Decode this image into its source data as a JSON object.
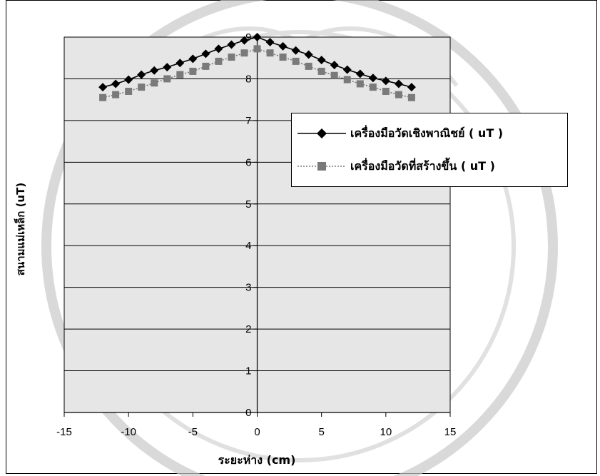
{
  "chart_data": {
    "type": "scatter",
    "title": "",
    "xlabel": "ระยะห่าง (cm)",
    "ylabel": "สนามแม่เหล็ก (uT)",
    "xlim": [
      -15,
      15
    ],
    "ylim": [
      0,
      9
    ],
    "xticks": [
      -15,
      -10,
      -5,
      0,
      5,
      10,
      15
    ],
    "yticks": [
      0,
      1,
      2,
      3,
      4,
      5,
      6,
      7,
      8,
      9
    ],
    "x_tick_labels": [
      "-15",
      "-10",
      "-5",
      "0",
      "5",
      "10",
      "15"
    ],
    "y_tick_labels": [
      "0",
      "1",
      "2",
      "3",
      "4",
      "5",
      "6",
      "7",
      "8",
      "9"
    ],
    "grid": true,
    "legend_position": "upper-right",
    "x": [
      -12,
      -11,
      -10,
      -9,
      -8,
      -7,
      -6,
      -5,
      -4,
      -3,
      -2,
      -1,
      0,
      1,
      2,
      3,
      4,
      5,
      6,
      7,
      8,
      9,
      10,
      11,
      12
    ],
    "series": [
      {
        "name": "เครื่องมือวัดเชิงพาณิชย์ ( uT )",
        "marker": "diamond",
        "line": "solid",
        "color": "#000000",
        "values": [
          7.8,
          7.88,
          7.98,
          8.1,
          8.2,
          8.28,
          8.38,
          8.48,
          8.6,
          8.72,
          8.82,
          8.92,
          9.0,
          8.88,
          8.78,
          8.68,
          8.58,
          8.45,
          8.33,
          8.22,
          8.12,
          8.02,
          7.95,
          7.88,
          7.8
        ]
      },
      {
        "name": "เครื่องมือวัดที่สร้างขึ้น ( uT )",
        "marker": "square",
        "line": "dotted",
        "color": "#7a7a7a",
        "values": [
          7.55,
          7.62,
          7.7,
          7.8,
          7.9,
          8.0,
          8.1,
          8.18,
          8.3,
          8.42,
          8.52,
          8.62,
          8.72,
          8.62,
          8.52,
          8.42,
          8.3,
          8.18,
          8.08,
          7.98,
          7.88,
          7.8,
          7.7,
          7.62,
          7.55
        ]
      }
    ]
  }
}
